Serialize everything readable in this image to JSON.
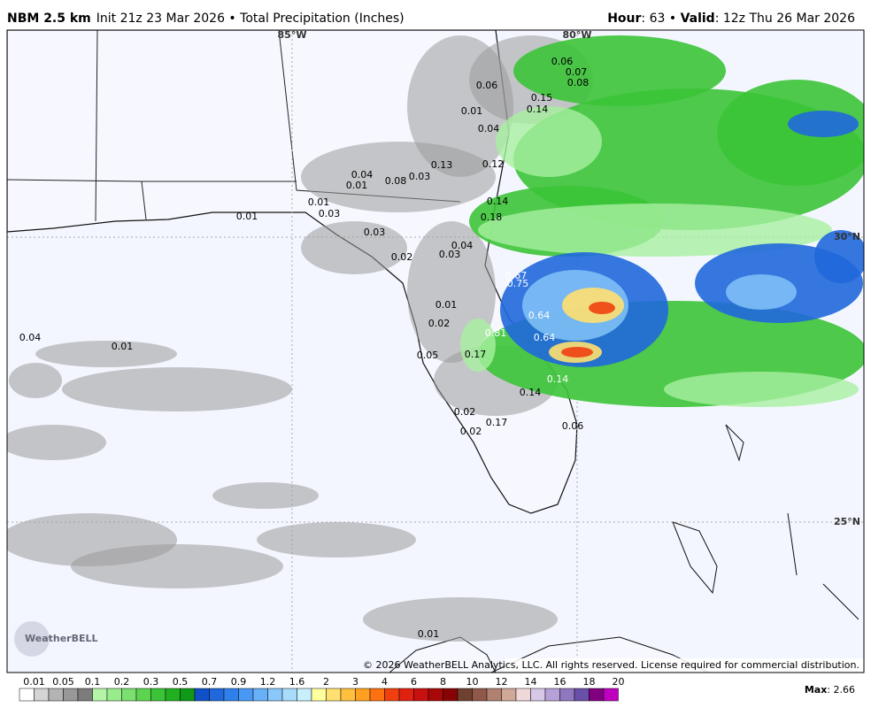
{
  "header": {
    "model": "NBM 2.5 km",
    "info": "Init 21z 23 Mar 2026 • Total Precipitation (Inches)",
    "hour_label": "Hour",
    "hour": ": 63 • ",
    "valid_label": "Valid",
    "valid": ": 12z Thu 26 Mar 2026"
  },
  "map": {
    "grid_labels": [
      "85°W",
      "80°W",
      "30°N",
      "25°N"
    ],
    "values": [
      "0.06",
      "0.07",
      "0.08",
      "0.06",
      "0.15",
      "0.14",
      "0.01",
      "0.04",
      "0.13",
      "0.12",
      "0.04",
      "0.01",
      "0.08",
      "0.03",
      "0.14",
      "0.01",
      "0.03",
      "0.01",
      "0.18",
      "0.03",
      "0.04",
      "0.03",
      "0.02",
      "0.67",
      "0.75",
      "0.01",
      "0.64",
      "0.02",
      "0.81",
      "0.64",
      "0.04",
      "0.01",
      "0.17",
      "0.05",
      "0.14",
      "0.14",
      "0.02",
      "0.17",
      "0.06",
      "0.02",
      "0.01"
    ],
    "logo": "WeatherBELL",
    "copyright": "© 2026 WeatherBELL Analytics, LLC. All rights reserved. License required for commercial distribution."
  },
  "legend": {
    "labels": [
      "0.01",
      "0.05",
      "0.1",
      "0.2",
      "0.3",
      "0.5",
      "0.7",
      "0.9",
      "1.2",
      "1.6",
      "2",
      "3",
      "4",
      "6",
      "8",
      "10",
      "12",
      "14",
      "16",
      "18",
      "20"
    ],
    "colors": [
      "#ffffff",
      "#d4d4d4",
      "#b4b4b4",
      "#989898",
      "#7c7c7c",
      "#b4f5a8",
      "#98ec8c",
      "#7ce070",
      "#5cd450",
      "#3cc438",
      "#20b020",
      "#109818",
      "#1050c8",
      "#2068dc",
      "#3080ec",
      "#4898f4",
      "#68b0f8",
      "#88c8fa",
      "#a8dcfc",
      "#c8f0fc",
      "#ffffa0",
      "#ffe070",
      "#ffc040",
      "#ffa020",
      "#ff7010",
      "#f04010",
      "#e02010",
      "#c81010",
      "#a80808",
      "#880404",
      "#704030",
      "#905848",
      "#b08070",
      "#d0a898",
      "#f0d8d8",
      "#d8c8e8",
      "#b8a0d8",
      "#9078c0",
      "#6850a8",
      "#800080",
      "#c000c0"
    ],
    "max_label": "Max",
    "max": ": 2.66"
  }
}
